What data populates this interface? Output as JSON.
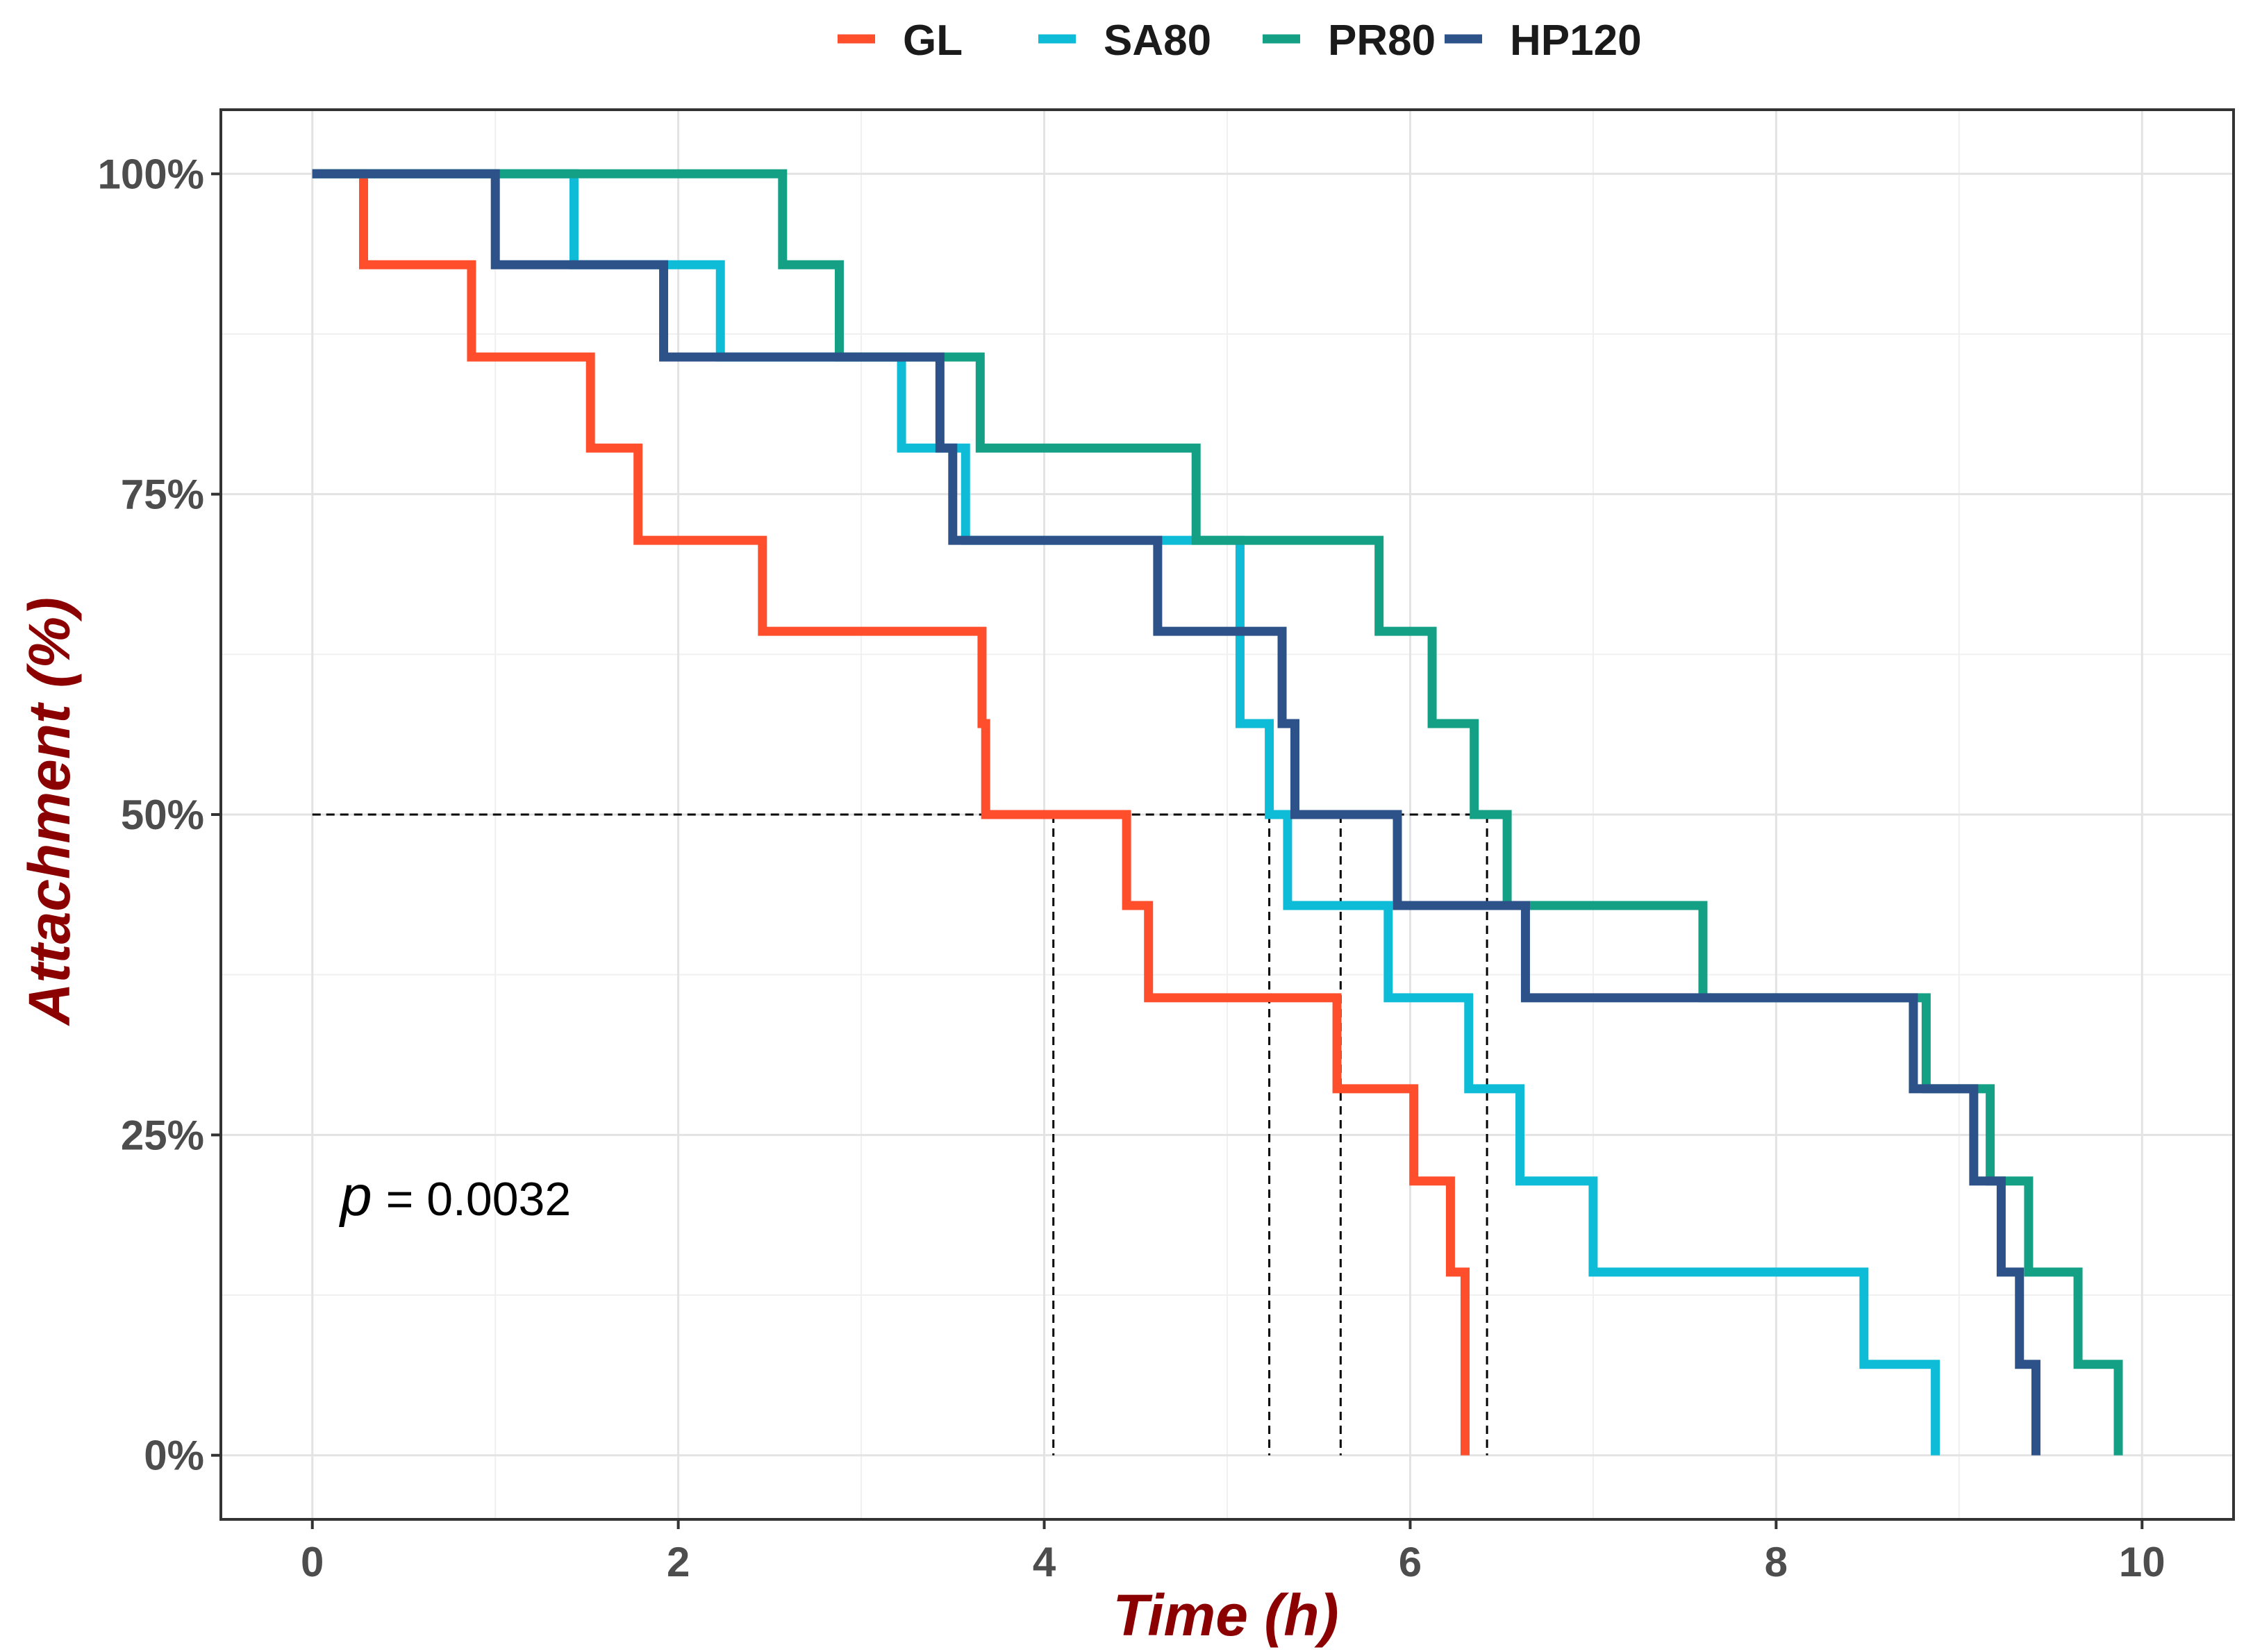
{
  "chart_data": {
    "type": "line",
    "subtype": "kaplan-meier step",
    "xlabel": "Time (h)",
    "ylabel": "Attachment (%)",
    "xlim": [
      -0.5,
      10.5
    ],
    "ylim": [
      -5,
      105
    ],
    "x_ticks": [
      0,
      2,
      4,
      6,
      8,
      10
    ],
    "y_ticks": [
      0,
      25,
      50,
      75,
      100
    ],
    "y_tick_labels": [
      "0%",
      "25%",
      "50%",
      "75%",
      "100%"
    ],
    "grid": true,
    "legend_position": "top",
    "annotation": {
      "symbol": "p",
      "text": "= 0.0032",
      "x": 0.15,
      "y": 20
    },
    "median_line_y": 50,
    "median_times": [
      4.05,
      5.23,
      5.62,
      6.42
    ],
    "series": [
      {
        "name": "GL",
        "color": "#FF4E2C",
        "steps": [
          [
            0,
            100
          ],
          [
            0.28,
            92.9
          ],
          [
            0.87,
            85.7
          ],
          [
            1.52,
            78.6
          ],
          [
            1.78,
            71.4
          ],
          [
            2.46,
            64.3
          ],
          [
            3.66,
            57.1
          ],
          [
            3.68,
            50
          ],
          [
            4.45,
            42.9
          ],
          [
            4.57,
            35.7
          ],
          [
            5.6,
            28.6
          ],
          [
            6.02,
            21.4
          ],
          [
            6.22,
            14.3
          ],
          [
            6.3,
            0
          ]
        ]
      },
      {
        "name": "SA80",
        "color": "#0FBCD7",
        "steps": [
          [
            0,
            100
          ],
          [
            1.43,
            92.9
          ],
          [
            2.23,
            85.7
          ],
          [
            3.22,
            78.6
          ],
          [
            3.57,
            71.4
          ],
          [
            5.07,
            57.1
          ],
          [
            5.23,
            50
          ],
          [
            5.33,
            42.9
          ],
          [
            5.88,
            35.7
          ],
          [
            6.32,
            28.6
          ],
          [
            6.6,
            21.4
          ],
          [
            7.0,
            14.3
          ],
          [
            8.48,
            7.1
          ],
          [
            8.87,
            0
          ]
        ]
      },
      {
        "name": "PR80",
        "color": "#14A085",
        "steps": [
          [
            0,
            100
          ],
          [
            2.57,
            92.9
          ],
          [
            2.88,
            85.7
          ],
          [
            3.65,
            78.6
          ],
          [
            4.83,
            71.4
          ],
          [
            5.83,
            64.3
          ],
          [
            6.12,
            57.1
          ],
          [
            6.35,
            50
          ],
          [
            6.53,
            42.9
          ],
          [
            7.6,
            35.7
          ],
          [
            8.82,
            28.6
          ],
          [
            9.17,
            21.4
          ],
          [
            9.38,
            14.3
          ],
          [
            9.65,
            7.1
          ],
          [
            9.87,
            0
          ]
        ]
      },
      {
        "name": "HP120",
        "color": "#2D5189",
        "steps": [
          [
            0,
            100
          ],
          [
            1.0,
            92.9
          ],
          [
            1.92,
            85.7
          ],
          [
            3.43,
            78.6
          ],
          [
            3.5,
            71.4
          ],
          [
            4.62,
            64.3
          ],
          [
            5.3,
            57.1
          ],
          [
            5.37,
            50
          ],
          [
            5.93,
            42.9
          ],
          [
            6.63,
            35.7
          ],
          [
            8.75,
            28.6
          ],
          [
            9.08,
            21.4
          ],
          [
            9.23,
            14.3
          ],
          [
            9.33,
            7.1
          ],
          [
            9.42,
            0
          ]
        ]
      }
    ]
  }
}
